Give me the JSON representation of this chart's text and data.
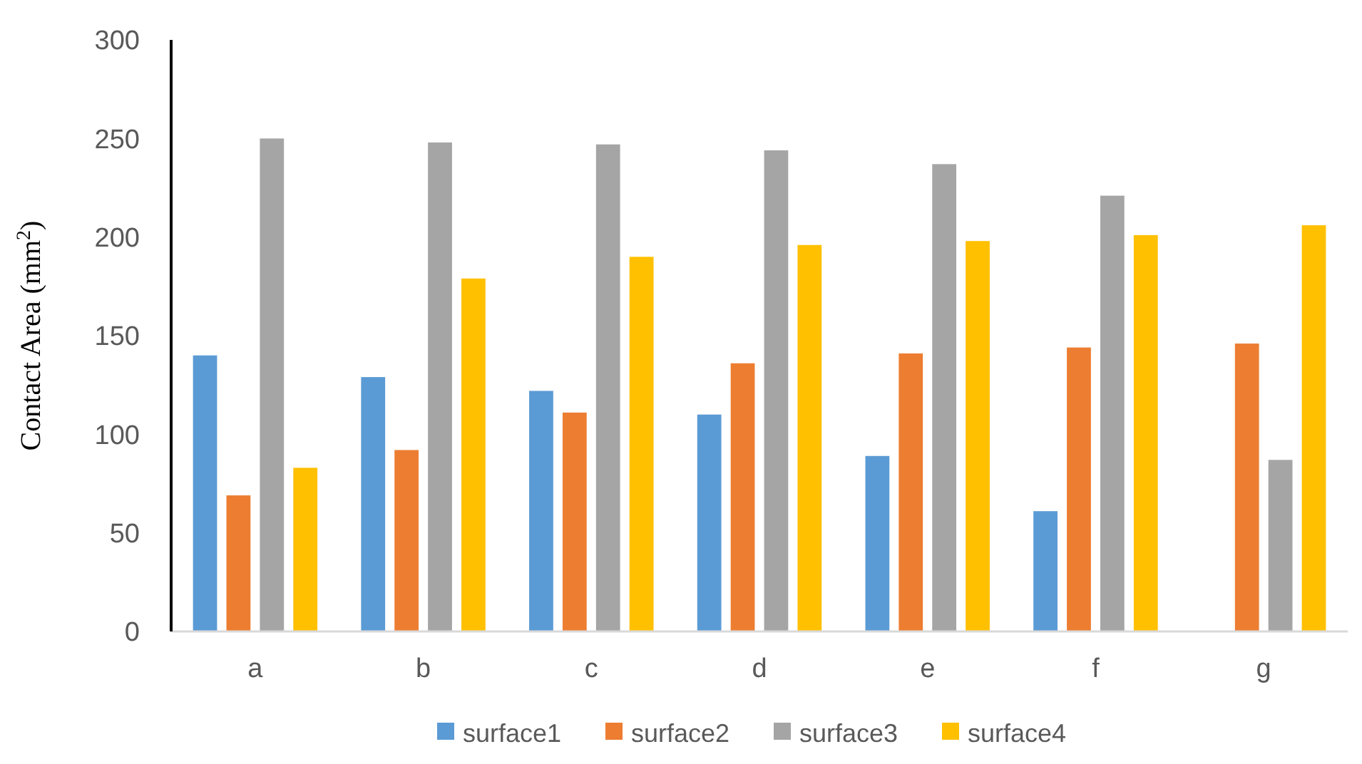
{
  "chart_data": {
    "type": "bar",
    "ylabel": "Contact Area (mm$^{2}$)",
    "categories": [
      "a",
      "b",
      "c",
      "d",
      "e",
      "f",
      "g"
    ],
    "series": [
      {
        "name": "surface1",
        "color": "#5b9bd5",
        "values": [
          140,
          129,
          122,
          110,
          89,
          61,
          null
        ]
      },
      {
        "name": "surface2",
        "color": "#ed7d31",
        "values": [
          69,
          92,
          111,
          136,
          141,
          144,
          146
        ]
      },
      {
        "name": "surface3",
        "color": "#a5a5a5",
        "values": [
          250,
          248,
          247,
          244,
          237,
          221,
          87
        ]
      },
      {
        "name": "surface4",
        "color": "#ffc000",
        "values": [
          83,
          179,
          190,
          196,
          198,
          201,
          206
        ]
      }
    ],
    "ylim": [
      0,
      300
    ],
    "yticks": [
      0,
      50,
      100,
      150,
      200,
      250,
      300
    ],
    "grid": false,
    "legend": "bottom"
  }
}
